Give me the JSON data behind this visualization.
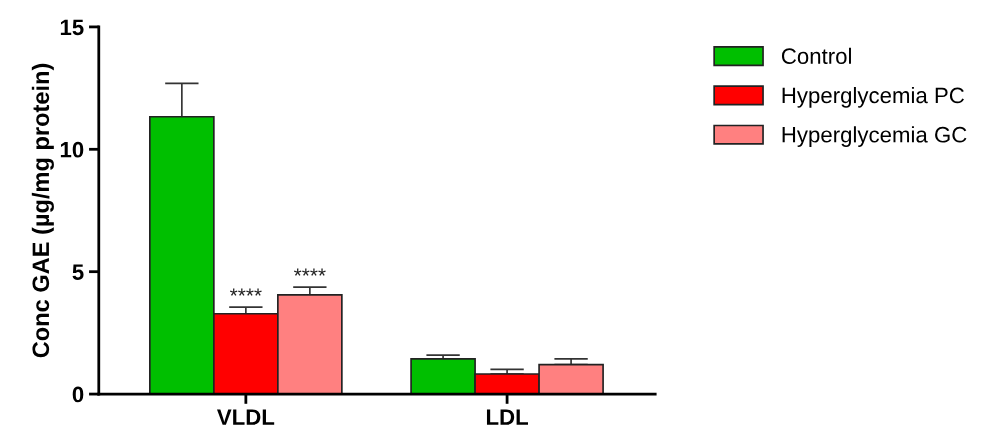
{
  "chart_data": {
    "type": "bar",
    "ylabel": "Conc GAE (µg/mg protein)",
    "categories": [
      "VLDL",
      "LDL"
    ],
    "series": [
      {
        "name": "Control",
        "color": "#00bf00",
        "values": [
          11.33,
          1.44
        ],
        "errors": [
          [
            11.33,
            12.69
          ],
          [
            1.44,
            1.59
          ]
        ]
      },
      {
        "name": "Hyperglycemia PC",
        "color": "#ff0000",
        "values": [
          3.28,
          0.82
        ],
        "errors": [
          [
            3.28,
            3.55
          ],
          [
            0.82,
            1.01
          ]
        ],
        "value_labels": [
          "****",
          null
        ]
      },
      {
        "name": "Hyperglycemia GC",
        "color": "#ff8080",
        "values": [
          4.05,
          1.2
        ],
        "errors": [
          [
            4.05,
            4.37
          ],
          [
            1.2,
            1.44
          ]
        ],
        "value_labels": [
          "****",
          null
        ]
      }
    ],
    "ylim": [
      0,
      15
    ],
    "yticks": [
      0,
      5,
      10,
      15
    ],
    "grid": false,
    "legend": "right"
  }
}
